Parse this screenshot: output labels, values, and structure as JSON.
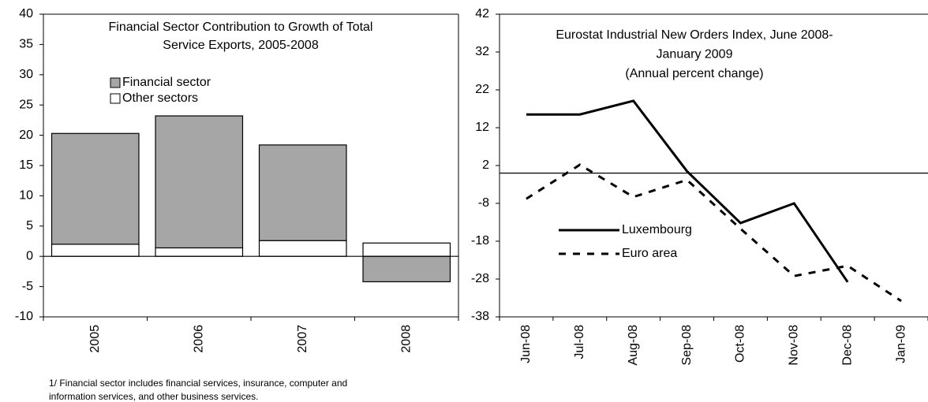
{
  "chart_data": [
    {
      "type": "bar",
      "stacked": true,
      "title": [
        "Financial Sector Contribution to Growth of Total",
        "Service Exports, 2005-2008"
      ],
      "categories": [
        "2005",
        "2006",
        "2007",
        "2008"
      ],
      "series": [
        {
          "name": "Other sectors",
          "color": "#ffffff",
          "values": [
            2,
            1.4,
            2.6,
            2.2
          ]
        },
        {
          "name": "Financial sector",
          "color": "#a6a6a6",
          "values": [
            18.3,
            21.8,
            15.8,
            -4.2
          ]
        }
      ],
      "ylim": [
        -10,
        40
      ],
      "yticks": [
        -10,
        -5,
        0,
        5,
        10,
        15,
        20,
        25,
        30,
        35,
        40
      ],
      "footnote": [
        "1/ Financial sector includes financial services, insurance, computer and",
        "information services, and other business services."
      ]
    },
    {
      "type": "line",
      "title": [
        "Eurostat Industrial New Orders Index, June 2008-",
        "January 2009",
        "(Annual percent change)"
      ],
      "categories": [
        "Jun-08",
        "Jul-08",
        "Aug-08",
        "Sep-08",
        "Oct-08",
        "Nov-08",
        "Dec-08",
        "Jan-09"
      ],
      "series": [
        {
          "name": "Luxembourg",
          "color": "#000000",
          "style": "solid",
          "values": [
            15.5,
            15.5,
            19.1,
            0.5,
            -13.2,
            -8,
            -28.8,
            null
          ]
        },
        {
          "name": "Euro area",
          "color": "#000000",
          "style": "dashed",
          "values": [
            -6.8,
            2.2,
            -6.3,
            -1.8,
            -14.7,
            -27.2,
            -24.5,
            -33.8
          ]
        }
      ],
      "ylim": [
        -38,
        42
      ],
      "yticks": [
        -38,
        -28,
        -18,
        -8,
        2,
        12,
        22,
        32,
        42
      ]
    }
  ]
}
